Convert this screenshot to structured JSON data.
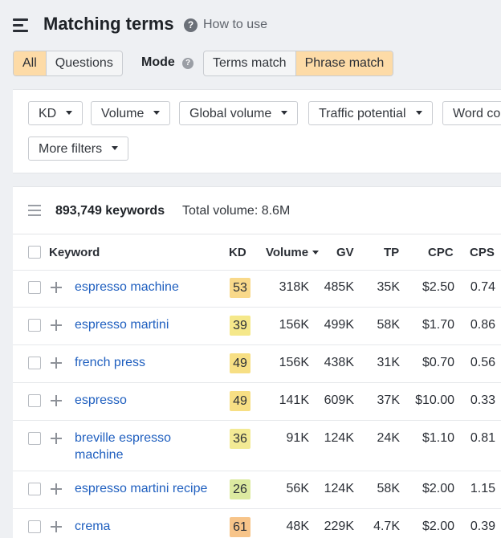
{
  "header": {
    "title": "Matching terms",
    "help_label": "How to use"
  },
  "tabs": [
    {
      "label": "All",
      "active": true
    },
    {
      "label": "Questions",
      "active": false
    }
  ],
  "mode": {
    "label": "Mode",
    "options": [
      {
        "label": "Terms match",
        "active": false
      },
      {
        "label": "Phrase match",
        "active": true
      }
    ]
  },
  "filters": [
    "KD",
    "Volume",
    "Global volume",
    "Traffic potential",
    "Word co",
    "More filters"
  ],
  "results": {
    "count": "893,749 keywords",
    "total_volume": "Total volume: 8.6M"
  },
  "columns": {
    "keyword": "Keyword",
    "kd": "KD",
    "volume": "Volume",
    "gv": "GV",
    "tp": "TP",
    "cpc": "CPC",
    "cps": "CPS"
  },
  "colors": {
    "accent_active": "#fddba7",
    "link": "#1f5fbf"
  },
  "rows": [
    {
      "keyword": "espresso machine",
      "kd": "53",
      "kd_color": "#f9d98a",
      "volume": "318K",
      "gv": "485K",
      "tp": "35K",
      "cpc": "$2.50",
      "cps": "0.74"
    },
    {
      "keyword": "espresso martini",
      "kd": "39",
      "kd_color": "#f5e88a",
      "volume": "156K",
      "gv": "499K",
      "tp": "58K",
      "cpc": "$1.70",
      "cps": "0.86"
    },
    {
      "keyword": "french press",
      "kd": "49",
      "kd_color": "#f7df84",
      "volume": "156K",
      "gv": "438K",
      "tp": "31K",
      "cpc": "$0.70",
      "cps": "0.56"
    },
    {
      "keyword": "espresso",
      "kd": "49",
      "kd_color": "#f7df84",
      "volume": "141K",
      "gv": "609K",
      "tp": "37K",
      "cpc": "$10.00",
      "cps": "0.33"
    },
    {
      "keyword": "breville espresso machine",
      "kd": "36",
      "kd_color": "#f3ea94",
      "volume": "91K",
      "gv": "124K",
      "tp": "24K",
      "cpc": "$1.10",
      "cps": "0.81"
    },
    {
      "keyword": "espresso martini recipe",
      "kd": "26",
      "kd_color": "#dceaa0",
      "volume": "56K",
      "gv": "124K",
      "tp": "58K",
      "cpc": "$2.00",
      "cps": "1.15"
    },
    {
      "keyword": "crema",
      "kd": "61",
      "kd_color": "#f7c489",
      "volume": "48K",
      "gv": "229K",
      "tp": "4.7K",
      "cpc": "$2.00",
      "cps": "0.39"
    }
  ]
}
